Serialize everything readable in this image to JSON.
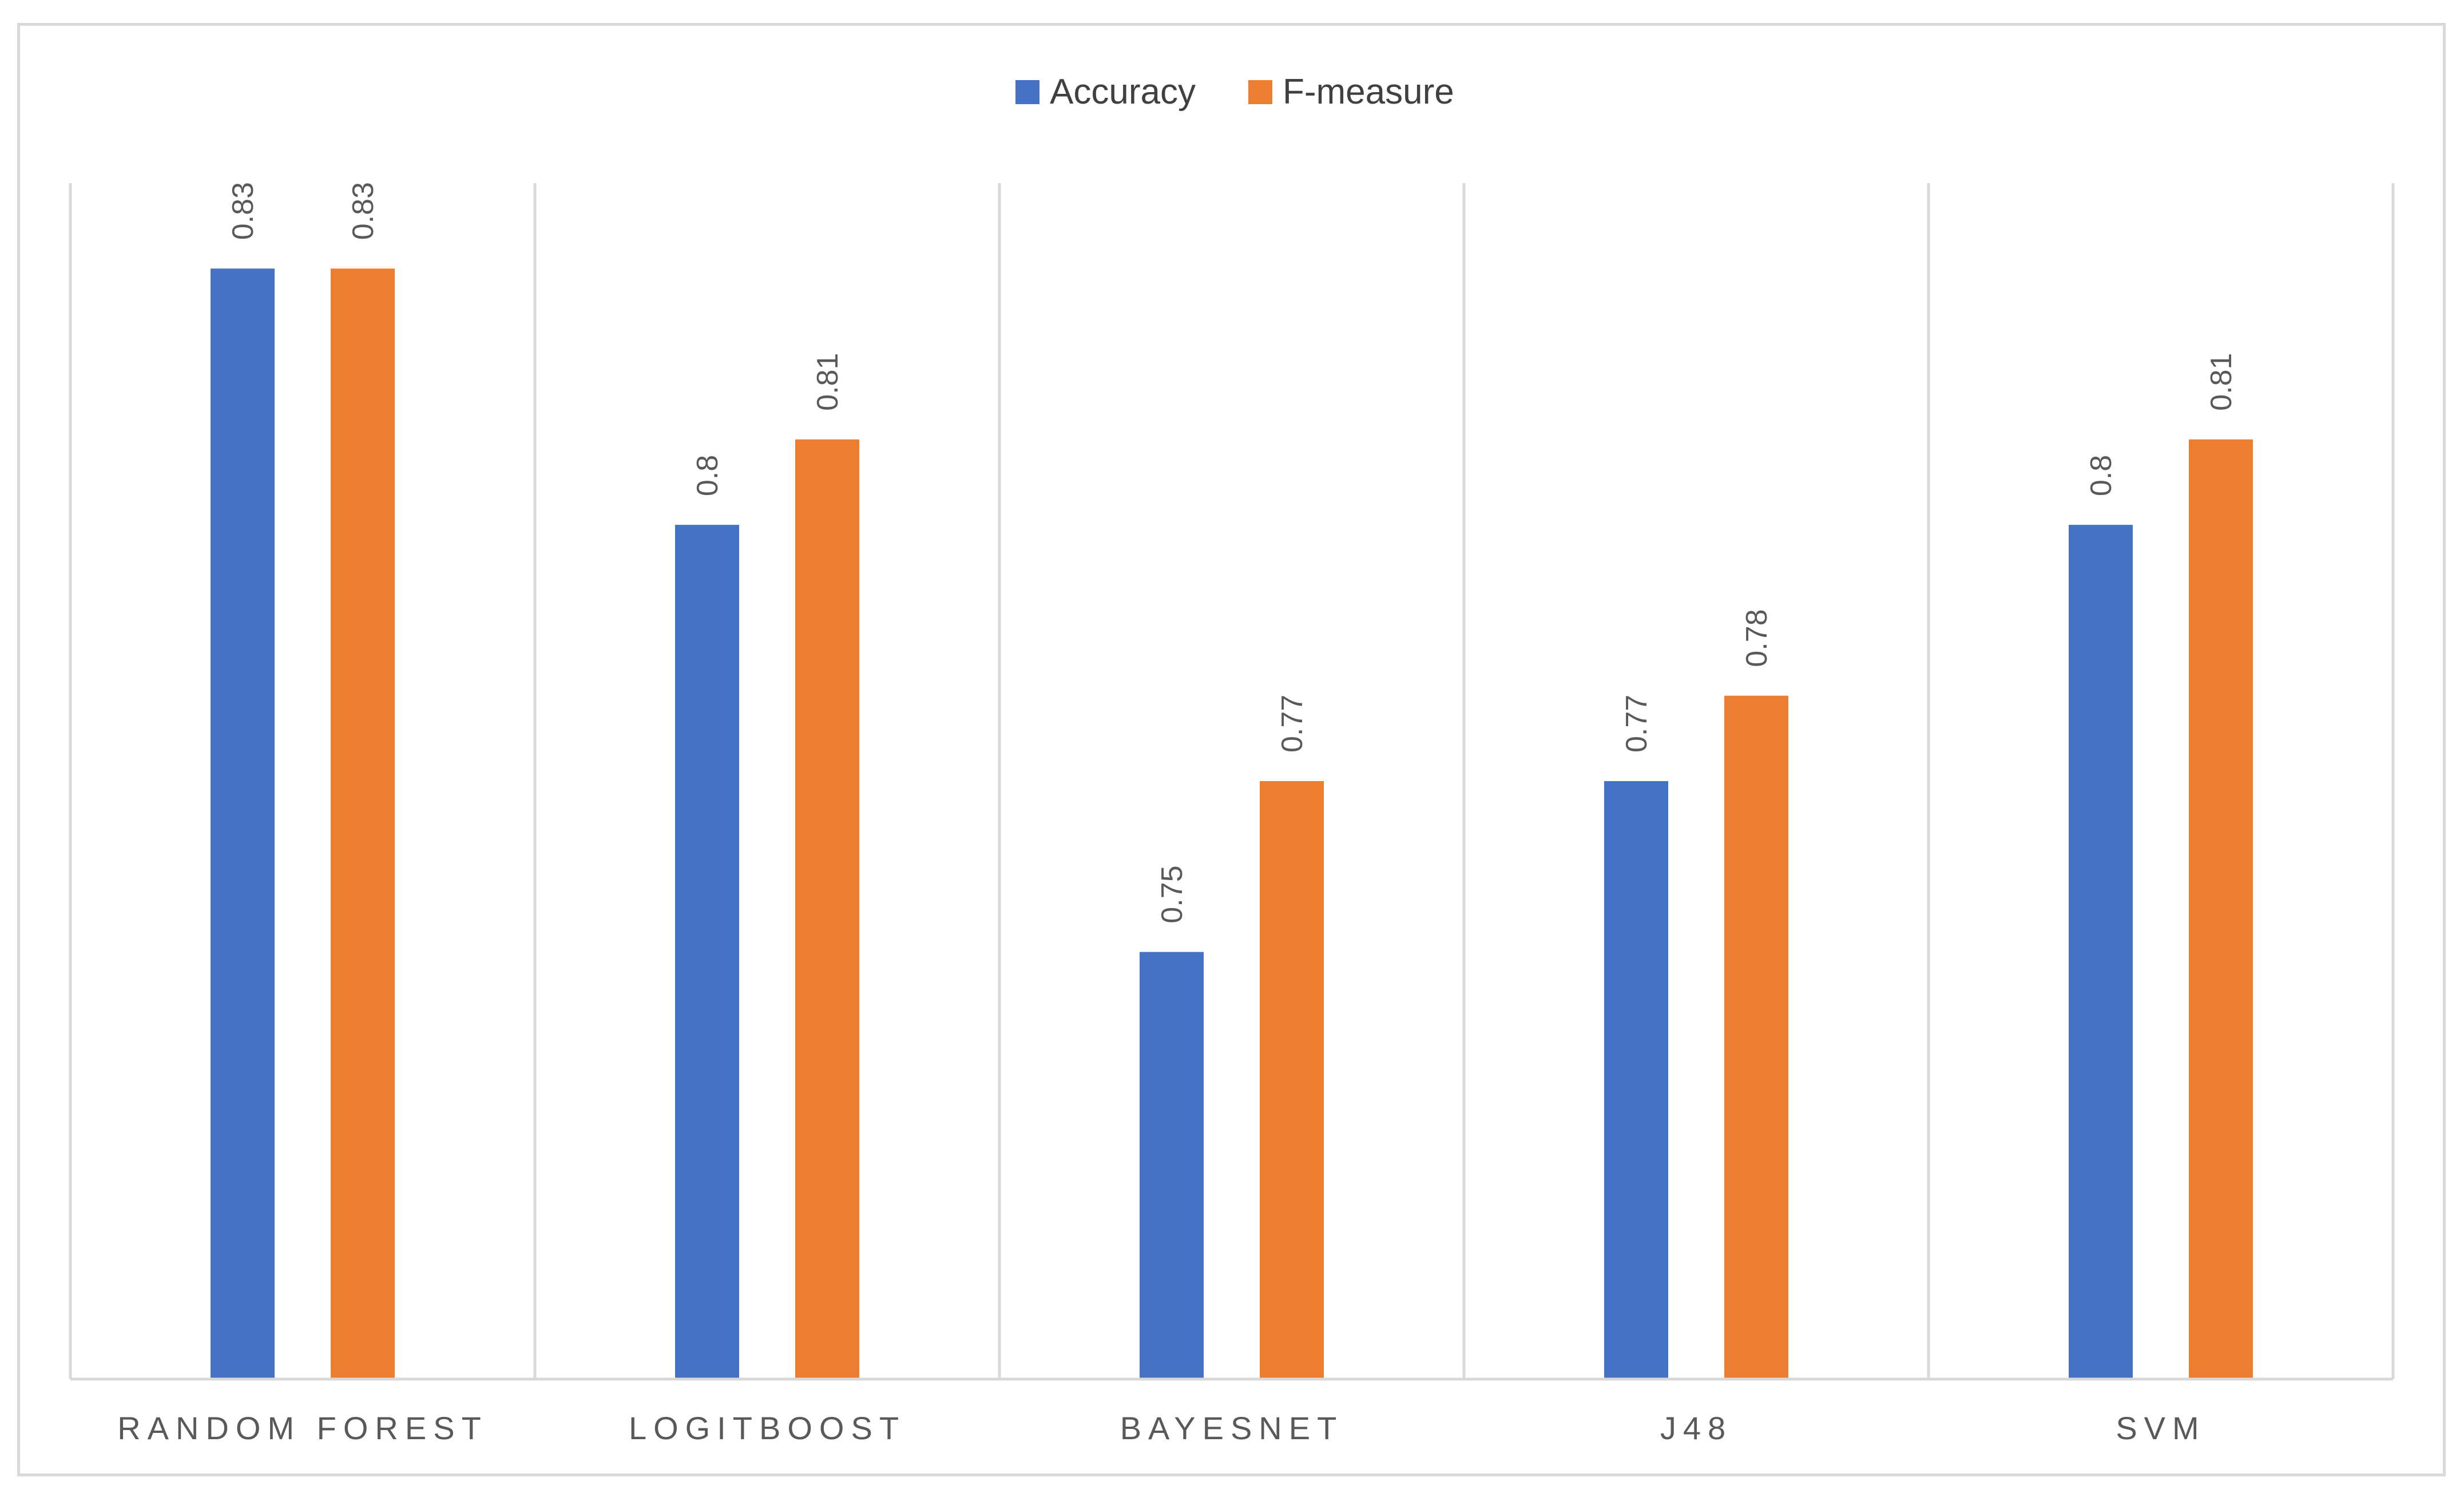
{
  "chart_data": {
    "type": "bar",
    "categories": [
      "RANDOM FOREST",
      "LOGITBOOST",
      "BAYESNET",
      "J48",
      "SVM"
    ],
    "series": [
      {
        "name": "Accuracy",
        "color": "#4472c4",
        "values": [
          0.83,
          0.8,
          0.75,
          0.77,
          0.8
        ]
      },
      {
        "name": "F-measure",
        "color": "#ed7d31",
        "values": [
          0.83,
          0.81,
          0.77,
          0.78,
          0.81
        ]
      }
    ],
    "data_labels": [
      [
        "0.83",
        "0.8",
        "0.75",
        "0.77",
        "0.8"
      ],
      [
        "0.83",
        "0.81",
        "0.77",
        "0.78",
        "0.81"
      ]
    ],
    "ylim": [
      0.7,
      0.84
    ],
    "legend_position": "top",
    "grid": false,
    "category_separators": true,
    "data_labels_rotated": true
  }
}
